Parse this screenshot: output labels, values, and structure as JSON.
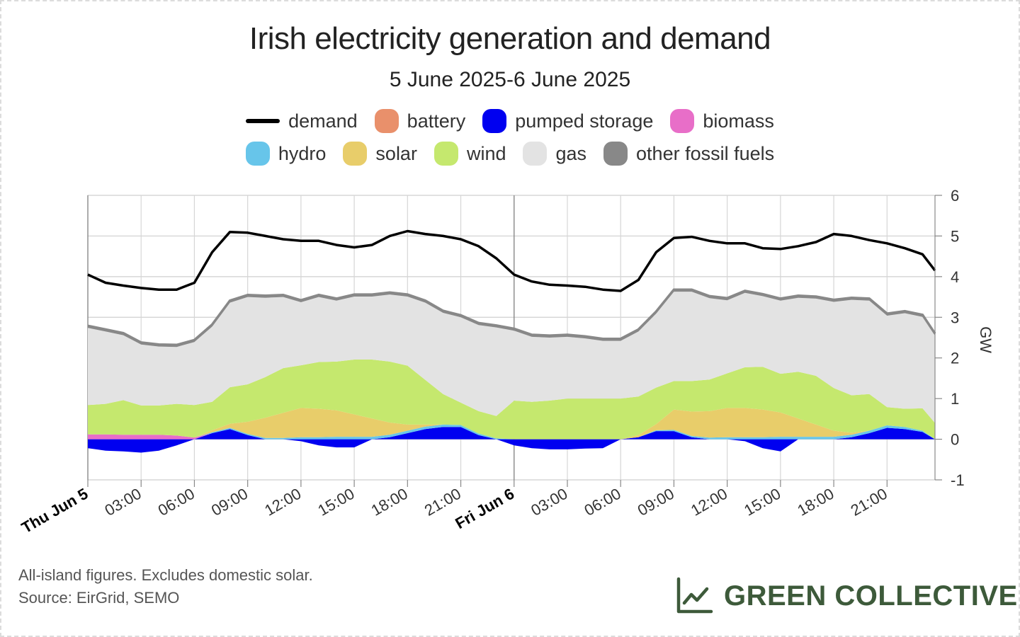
{
  "title": "Irish electricity generation and demand",
  "subtitle": "5 June 2025-6 June 2025",
  "legend": [
    {
      "key": "demand",
      "label": "demand",
      "color": "#000000",
      "style": "line"
    },
    {
      "key": "battery",
      "label": "battery",
      "color": "#e9906b",
      "style": "box"
    },
    {
      "key": "pumped_storage",
      "label": "pumped storage",
      "color": "#0000f0",
      "style": "box"
    },
    {
      "key": "biomass",
      "label": "biomass",
      "color": "#e86ec8",
      "style": "box"
    },
    {
      "key": "hydro",
      "label": "hydro",
      "color": "#67c5ea",
      "style": "box"
    },
    {
      "key": "solar",
      "label": "solar",
      "color": "#e8cd6a",
      "style": "box"
    },
    {
      "key": "wind",
      "label": "wind",
      "color": "#c5e86e",
      "style": "box"
    },
    {
      "key": "gas",
      "label": "gas",
      "color": "#e3e3e3",
      "style": "box"
    },
    {
      "key": "other_fossil",
      "label": "other fossil fuels",
      "color": "#888888",
      "style": "box"
    }
  ],
  "footnote_1": "All-island figures. Excludes domestic solar.",
  "footnote_2": "Source: EirGrid, SEMO",
  "brand_name": "GREEN COLLECTIVE",
  "brand_color": "#3d5a3a",
  "chart_data": {
    "type": "area",
    "y_unit_label": "GW",
    "ylim": [
      -1,
      6
    ],
    "y_ticks": [
      -1,
      0,
      1,
      2,
      3,
      4,
      5,
      6
    ],
    "x_unit": "hours since Thu Jun 5 00:00",
    "xlim": [
      0,
      47.7
    ],
    "x_ticks": [
      {
        "x": 0,
        "label": "Thu Jun 5",
        "bold": true
      },
      {
        "x": 3,
        "label": "03:00"
      },
      {
        "x": 6,
        "label": "06:00"
      },
      {
        "x": 9,
        "label": "09:00"
      },
      {
        "x": 12,
        "label": "12:00"
      },
      {
        "x": 15,
        "label": "15:00"
      },
      {
        "x": 18,
        "label": "18:00"
      },
      {
        "x": 21,
        "label": "21:00"
      },
      {
        "x": 24,
        "label": "Fri Jun 6",
        "bold": true
      },
      {
        "x": 27,
        "label": "03:00"
      },
      {
        "x": 30,
        "label": "06:00"
      },
      {
        "x": 33,
        "label": "09:00"
      },
      {
        "x": 36,
        "label": "12:00"
      },
      {
        "x": 39,
        "label": "15:00"
      },
      {
        "x": 42,
        "label": "18:00"
      },
      {
        "x": 45,
        "label": "21:00"
      }
    ],
    "grid": true,
    "legend_position": "top",
    "x": [
      0,
      1,
      2,
      3,
      4,
      5,
      6,
      7,
      8,
      9,
      10,
      11,
      12,
      13,
      14,
      15,
      16,
      17,
      18,
      19,
      20,
      21,
      22,
      23,
      24,
      25,
      26,
      27,
      28,
      29,
      30,
      31,
      32,
      33,
      34,
      35,
      36,
      37,
      38,
      39,
      40,
      41,
      42,
      43,
      44,
      45,
      46,
      47,
      47.7
    ],
    "demand": [
      4.05,
      3.85,
      3.78,
      3.72,
      3.68,
      3.68,
      3.85,
      4.6,
      5.1,
      5.08,
      5.0,
      4.92,
      4.88,
      4.88,
      4.78,
      4.72,
      4.78,
      5.0,
      5.12,
      5.05,
      5.0,
      4.92,
      4.75,
      4.45,
      4.05,
      3.88,
      3.8,
      3.78,
      3.75,
      3.68,
      3.65,
      3.92,
      4.6,
      4.95,
      4.98,
      4.88,
      4.82,
      4.82,
      4.7,
      4.68,
      4.75,
      4.85,
      5.05,
      5.0,
      4.9,
      4.82,
      4.7,
      4.55,
      4.15
    ],
    "series": [
      {
        "name": "pumped storage",
        "key": "pumped_storage",
        "values": [
          -0.22,
          -0.28,
          -0.3,
          -0.33,
          -0.28,
          -0.15,
          0,
          0.15,
          0.25,
          0.1,
          0,
          0,
          -0.05,
          -0.15,
          -0.2,
          -0.2,
          0,
          0.05,
          0.15,
          0.25,
          0.3,
          0.3,
          0.1,
          0,
          -0.15,
          -0.22,
          -0.25,
          -0.25,
          -0.23,
          -0.22,
          0,
          0.05,
          0.2,
          0.2,
          0.05,
          0,
          0,
          -0.05,
          -0.22,
          -0.3,
          0,
          0,
          0,
          0.05,
          0.15,
          0.28,
          0.25,
          0.18,
          0
        ]
      },
      {
        "name": "battery",
        "key": "battery",
        "values": [
          0,
          0,
          0,
          0,
          0,
          0,
          0,
          0,
          0,
          0,
          0,
          0,
          0,
          0,
          0,
          0,
          0,
          0,
          0,
          0,
          0,
          0,
          0,
          0,
          0,
          0,
          0,
          0,
          0,
          0,
          0,
          0,
          0,
          0,
          0,
          0,
          0,
          0,
          0,
          0,
          0,
          0,
          0,
          0,
          0,
          0,
          0,
          0,
          0
        ]
      },
      {
        "name": "biomass",
        "key": "biomass",
        "values": [
          0.12,
          0.12,
          0.11,
          0.11,
          0.11,
          0.09,
          0.04,
          0,
          0,
          0,
          0,
          0,
          0,
          0,
          0,
          0,
          0,
          0,
          0,
          0,
          0,
          0,
          0,
          0,
          0,
          0,
          0,
          0,
          0,
          0,
          0,
          0,
          0,
          0,
          0,
          0,
          0,
          0,
          0,
          0,
          0,
          0,
          0,
          0,
          0,
          0,
          0,
          0,
          0
        ]
      },
      {
        "name": "hydro",
        "key": "hydro",
        "values": [
          0,
          0,
          0,
          0,
          0,
          0,
          0,
          0.02,
          0.03,
          0.03,
          0.03,
          0.03,
          0.05,
          0.05,
          0.06,
          0.06,
          0.06,
          0.06,
          0.06,
          0.06,
          0.06,
          0.05,
          0.04,
          0.02,
          0,
          0,
          0,
          0,
          0,
          0,
          0,
          0,
          0.02,
          0.03,
          0.03,
          0.04,
          0.05,
          0.05,
          0.05,
          0.06,
          0.06,
          0.06,
          0.06,
          0.06,
          0.06,
          0.06,
          0.05,
          0.03,
          0
        ]
      },
      {
        "name": "solar",
        "key": "solar",
        "values": [
          0,
          0,
          0,
          0,
          0,
          0,
          0,
          0.05,
          0.1,
          0.3,
          0.5,
          0.62,
          0.72,
          0.7,
          0.65,
          0.55,
          0.45,
          0.3,
          0.15,
          0.05,
          0,
          0,
          0,
          0,
          0,
          0,
          0,
          0,
          0,
          0,
          0,
          0.05,
          0.15,
          0.5,
          0.6,
          0.65,
          0.72,
          0.72,
          0.68,
          0.6,
          0.45,
          0.3,
          0.15,
          0.05,
          0,
          0,
          0,
          0,
          0
        ]
      },
      {
        "name": "wind",
        "key": "wind",
        "values": [
          0.72,
          0.75,
          0.85,
          0.72,
          0.72,
          0.78,
          0.8,
          0.7,
          0.9,
          0.92,
          1.0,
          1.1,
          1.05,
          1.15,
          1.2,
          1.35,
          1.45,
          1.5,
          1.45,
          1.1,
          0.75,
          0.55,
          0.55,
          0.55,
          0.95,
          0.92,
          0.95,
          1.0,
          1.0,
          1.0,
          1.0,
          0.95,
          0.9,
          0.7,
          0.75,
          0.78,
          0.85,
          1.0,
          1.05,
          0.95,
          1.15,
          1.2,
          1.05,
          0.92,
          0.9,
          0.45,
          0.45,
          0.55,
          0.4
        ]
      },
      {
        "name": "gas",
        "key": "gas",
        "values": [
          1.9,
          1.78,
          1.6,
          1.5,
          1.45,
          1.4,
          1.55,
          1.85,
          2.08,
          2.15,
          1.95,
          1.75,
          1.55,
          1.6,
          1.5,
          1.55,
          1.55,
          1.65,
          1.7,
          1.9,
          2.0,
          2.1,
          2.12,
          2.18,
          1.72,
          1.6,
          1.55,
          1.52,
          1.48,
          1.42,
          1.42,
          1.6,
          1.82,
          2.2,
          2.2,
          2.0,
          1.8,
          1.83,
          1.74,
          1.8,
          1.82,
          1.9,
          2.12,
          2.35,
          2.3,
          2.25,
          2.35,
          2.25,
          2.15
        ]
      },
      {
        "name": "other fossil fuels",
        "key": "other_fossil",
        "values": [
          0.05,
          0.05,
          0.05,
          0.05,
          0.05,
          0.05,
          0.05,
          0.05,
          0.05,
          0.05,
          0.05,
          0.05,
          0.05,
          0.05,
          0.05,
          0.05,
          0.05,
          0.05,
          0.05,
          0.05,
          0.05,
          0.05,
          0.05,
          0.05,
          0.05,
          0.05,
          0.05,
          0.05,
          0.05,
          0.05,
          0.05,
          0.05,
          0.05,
          0.05,
          0.05,
          0.05,
          0.05,
          0.05,
          0.05,
          0.05,
          0.05,
          0.05,
          0.05,
          0.05,
          0.05,
          0.05,
          0.05,
          0.05,
          0.05
        ]
      }
    ]
  }
}
